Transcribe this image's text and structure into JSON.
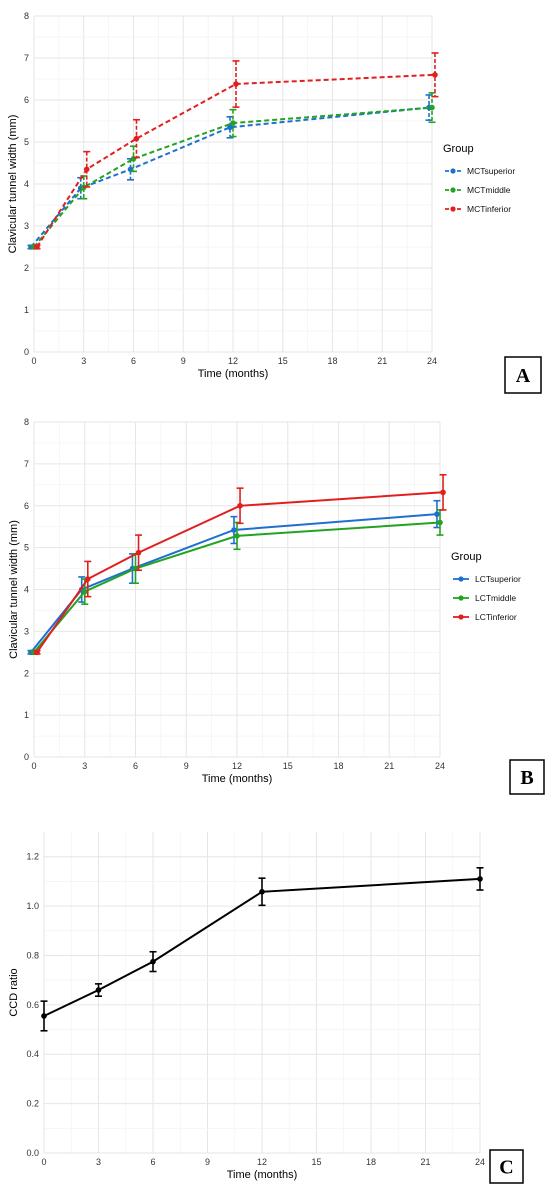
{
  "chart_data": [
    {
      "type": "line",
      "panel_label": "A",
      "xlabel": "Time (months)",
      "ylabel": "Clavicular tunnel width (mm)",
      "xlim": [
        0,
        24
      ],
      "ylim": [
        0,
        8
      ],
      "x_ticks": [
        0,
        3,
        6,
        9,
        12,
        15,
        18,
        21,
        24
      ],
      "y_ticks": [
        0,
        1,
        2,
        3,
        4,
        5,
        6,
        7,
        8
      ],
      "grid": true,
      "line_style": "dashed",
      "legend_title": "Group",
      "legend_position": "right",
      "x": [
        0,
        3,
        6,
        12,
        24
      ],
      "series": [
        {
          "name": "MCTsuperior",
          "color": "#1f6fd1",
          "values": [
            2.5,
            3.9,
            4.35,
            5.35,
            5.82
          ],
          "error": [
            0.04,
            0.25,
            0.25,
            0.25,
            0.3
          ]
        },
        {
          "name": "MCTmiddle",
          "color": "#22a322",
          "values": [
            2.5,
            3.92,
            4.6,
            5.45,
            5.82
          ],
          "error": [
            0.04,
            0.27,
            0.3,
            0.32,
            0.35
          ]
        },
        {
          "name": "MCTinferior",
          "color": "#e02020",
          "values": [
            2.5,
            4.35,
            5.08,
            6.38,
            6.6
          ],
          "error": [
            0.04,
            0.42,
            0.45,
            0.55,
            0.52
          ]
        }
      ]
    },
    {
      "type": "line",
      "panel_label": "B",
      "xlabel": "Time (months)",
      "ylabel": "Clavicular tunnel width (mm)",
      "xlim": [
        0,
        24
      ],
      "ylim": [
        0,
        8
      ],
      "x_ticks": [
        0,
        3,
        6,
        9,
        12,
        15,
        18,
        21,
        24
      ],
      "y_ticks": [
        0,
        1,
        2,
        3,
        4,
        5,
        6,
        7,
        8
      ],
      "grid": true,
      "line_style": "solid",
      "legend_title": "Group",
      "legend_position": "right",
      "x": [
        0,
        3,
        6,
        12,
        24
      ],
      "series": [
        {
          "name": "LCTsuperior",
          "color": "#1f6fd1",
          "values": [
            2.5,
            4.0,
            4.5,
            5.42,
            5.8
          ],
          "error": [
            0.04,
            0.3,
            0.35,
            0.32,
            0.32
          ]
        },
        {
          "name": "LCTmiddle",
          "color": "#22a322",
          "values": [
            2.5,
            3.95,
            4.5,
            5.28,
            5.6
          ],
          "error": [
            0.04,
            0.3,
            0.35,
            0.32,
            0.3
          ]
        },
        {
          "name": "LCTinferior",
          "color": "#e02020",
          "values": [
            2.5,
            4.25,
            4.88,
            6.0,
            6.32
          ],
          "error": [
            0.04,
            0.42,
            0.42,
            0.42,
            0.42
          ]
        }
      ]
    },
    {
      "type": "line",
      "panel_label": "C",
      "xlabel": "Time (months)",
      "ylabel": "CCD ratio",
      "xlim": [
        0,
        24
      ],
      "ylim": [
        0,
        1.3
      ],
      "x_ticks": [
        0,
        3,
        6,
        9,
        12,
        15,
        18,
        21,
        24
      ],
      "y_ticks": [
        0.0,
        0.2,
        0.4,
        0.6,
        0.8,
        1.0,
        1.2
      ],
      "y_tick_labels": [
        "0.0",
        "0.2",
        "0.4",
        "0.6",
        "0.8",
        "1.0",
        "1.2"
      ],
      "grid": true,
      "line_style": "solid",
      "x": [
        0,
        3,
        6,
        12,
        24
      ],
      "series": [
        {
          "name": "",
          "color": "#000000",
          "values": [
            0.555,
            0.66,
            0.775,
            1.058,
            1.11
          ],
          "error": [
            0.06,
            0.025,
            0.04,
            0.055,
            0.045
          ]
        }
      ]
    }
  ]
}
